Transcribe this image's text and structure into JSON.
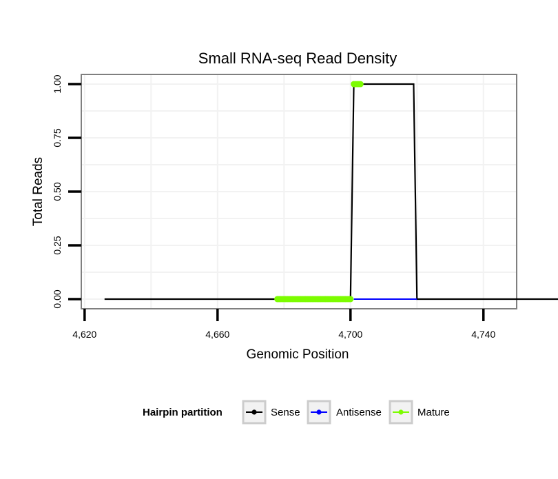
{
  "chart_data": {
    "type": "line",
    "title": "Small RNA-seq Read Density",
    "xlabel": "Genomic Position",
    "ylabel": "Total Reads",
    "xlim": [
      4619,
      4750
    ],
    "ylim": [
      -0.045,
      1.045
    ],
    "x_ticks": [
      4620,
      4660,
      4700,
      4740
    ],
    "x_tick_labels": [
      "4,620",
      "4,660",
      "4,700",
      "4,740"
    ],
    "y_ticks": [
      0,
      0.25,
      0.5,
      0.75,
      1
    ],
    "y_tick_labels": [
      "0.00",
      "0.25",
      "0.50",
      "0.75",
      "1.00"
    ],
    "grid": true,
    "legend": {
      "title": "Hairpin partition",
      "position": "bottom"
    },
    "series": [
      {
        "name": "Sense",
        "color": "#000000",
        "x": [
          4626,
          4700,
          4701,
          4719,
          4720,
          4765
        ],
        "y": [
          0,
          0,
          1,
          1,
          0,
          0
        ]
      },
      {
        "name": "Antisense",
        "color": "#0000ff",
        "x": [
          4701,
          4720
        ],
        "y": [
          0,
          0
        ]
      },
      {
        "name": "Mature",
        "color": "#7cfc00",
        "x": [
          4678,
          4700
        ],
        "y": [
          0,
          0
        ],
        "x2": [
          4701,
          4703
        ],
        "y2": [
          1,
          1
        ]
      }
    ]
  }
}
